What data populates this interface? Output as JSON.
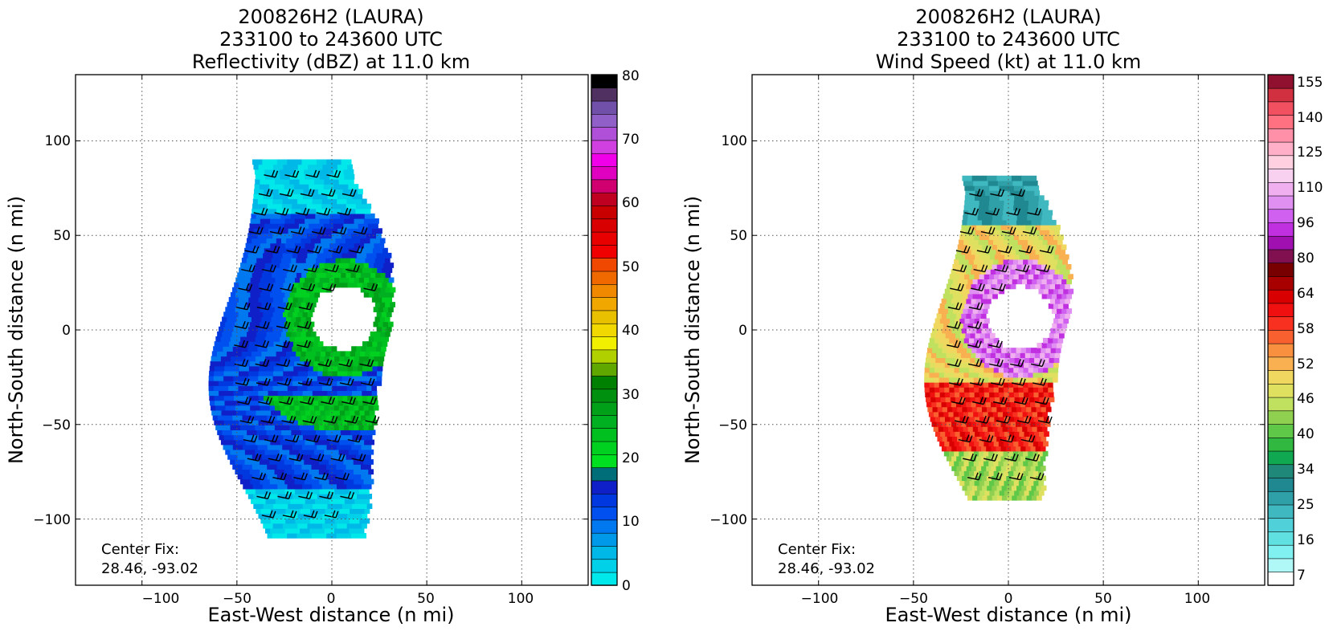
{
  "panels": [
    {
      "title_lines": [
        "200826H2 (LAURA)",
        "233100 to 243600 UTC",
        "Reflectivity (dBZ) at 11.0 km"
      ],
      "xlabel": "East-West distance (n mi)",
      "ylabel": "North-South distance (n mi)",
      "x_ticks": [
        "−100",
        "−50",
        "0",
        "50",
        "100"
      ],
      "y_ticks": [
        "100",
        "50",
        "0",
        "−50",
        "−100"
      ],
      "center_fix_label": "Center Fix:",
      "center_fix_value": "28.46, -93.02",
      "colorbar_ticks": [
        "0",
        "10",
        "20",
        "30",
        "40",
        "50",
        "60",
        "70",
        "80"
      ]
    },
    {
      "title_lines": [
        "200826H2 (LAURA)",
        "233100 to 243600 UTC",
        "Wind Speed (kt) at 11.0 km"
      ],
      "xlabel": "East-West distance (n mi)",
      "ylabel": "North-South distance (n mi)",
      "x_ticks": [
        "−100",
        "−50",
        "0",
        "50",
        "100"
      ],
      "y_ticks": [
        "100",
        "50",
        "0",
        "−50",
        "−100"
      ],
      "center_fix_label": "Center Fix:",
      "center_fix_value": "28.46, -93.02",
      "colorbar_ticks": [
        "7",
        "16",
        "25",
        "34",
        "40",
        "46",
        "52",
        "58",
        "64",
        "80",
        "96",
        "110",
        "125",
        "140",
        "155"
      ]
    }
  ],
  "chart_data": [
    {
      "type": "heatmap",
      "variable": "Reflectivity (dBZ)",
      "xlim": [
        -135,
        135
      ],
      "ylim": [
        -135,
        135
      ],
      "x_tick_values": [
        -100,
        -50,
        0,
        50,
        100
      ],
      "y_tick_values": [
        -100,
        -50,
        0,
        50,
        100
      ],
      "grid": true,
      "colorbar": {
        "range": [
          0,
          80
        ],
        "tick_values": [
          0,
          10,
          20,
          30,
          40,
          50,
          60,
          70,
          80
        ],
        "colors": [
          "#00e8ea",
          "#00d0e8",
          "#00b8e8",
          "#0098e8",
          "#0078f0",
          "#0050f0",
          "#0038e0",
          "#1020c8",
          "#006e78",
          "#00e020",
          "#00d020",
          "#00c020",
          "#00b020",
          "#00a018",
          "#009010",
          "#008000",
          "#60a800",
          "#b0d000",
          "#f0f000",
          "#f0d800",
          "#e8c000",
          "#f0a800",
          "#f08800",
          "#f06800",
          "#f04800",
          "#f00000",
          "#e80000",
          "#d80000",
          "#c80000",
          "#c00020",
          "#d00070",
          "#e000c0",
          "#f000e8",
          "#d040e0",
          "#b050d8",
          "#9060c8",
          "#7050a8",
          "#503060",
          "#000000"
        ]
      },
      "field_extent": {
        "x": [
          -60,
          30
        ],
        "y": [
          -110,
          90
        ]
      },
      "eye": {
        "x": 5,
        "y": 5,
        "radius": 17
      }
    },
    {
      "type": "heatmap",
      "variable": "Wind Speed (kt)",
      "xlim": [
        -135,
        135
      ],
      "ylim": [
        -135,
        135
      ],
      "x_tick_values": [
        -100,
        -50,
        0,
        50,
        100
      ],
      "y_tick_values": [
        -100,
        -50,
        0,
        50,
        100
      ],
      "grid": true,
      "colorbar": {
        "levels": [
          7,
          10,
          13,
          16,
          19,
          22,
          25,
          28,
          31,
          34,
          36,
          38,
          40,
          42,
          44,
          46,
          48,
          50,
          52,
          54,
          56,
          58,
          60,
          62,
          64,
          72,
          80,
          88,
          96,
          103,
          110,
          118,
          125,
          133,
          140,
          148,
          155,
          163
        ],
        "tick_values": [
          7,
          16,
          25,
          34,
          40,
          46,
          52,
          58,
          64,
          80,
          96,
          110,
          125,
          140,
          155
        ],
        "colors": [
          "#ffffff",
          "#b0f8f8",
          "#80f0f0",
          "#60e0e0",
          "#50d0d8",
          "#40b8c0",
          "#30a0a8",
          "#208890",
          "#208878",
          "#10a850",
          "#30b840",
          "#60c848",
          "#90d050",
          "#c0e060",
          "#e0e060",
          "#f0d860",
          "#f8b050",
          "#f89040",
          "#f86030",
          "#f83020",
          "#f01010",
          "#d80000",
          "#a80000",
          "#780000",
          "#801050",
          "#a010b0",
          "#c030e0",
          "#d060f0",
          "#e090f0",
          "#f0b0f0",
          "#f8d0f0",
          "#ffd0e0",
          "#ffb0c8",
          "#ff90a8",
          "#ff7080",
          "#f05060",
          "#d03040",
          "#901030"
        ]
      },
      "field_extent": {
        "x": [
          -40,
          30
        ],
        "y": [
          -90,
          80
        ]
      },
      "eye": {
        "x": 5,
        "y": 5,
        "radius": 17
      }
    }
  ]
}
